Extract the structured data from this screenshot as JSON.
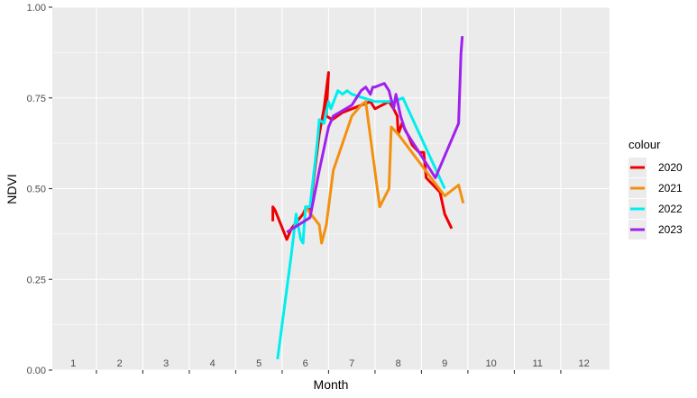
{
  "chart_data": {
    "type": "line",
    "xlabel": "Month",
    "ylabel": "NDVI",
    "xlim": [
      0.55,
      12.55
    ],
    "ylim": [
      0,
      1
    ],
    "x_ticks": [
      1,
      2,
      3,
      4,
      5,
      6,
      7,
      8,
      9,
      10,
      11,
      12
    ],
    "x_tick_labels": [
      "1",
      "2",
      "3",
      "4",
      "5",
      "6",
      "7",
      "8",
      "9",
      "10",
      "11",
      "12"
    ],
    "y_ticks": [
      0,
      0.25,
      0.5,
      0.75,
      1
    ],
    "y_tick_labels": [
      "0.00",
      "0.25",
      "0.50",
      "0.75",
      "1.00"
    ],
    "grid": true,
    "legend": {
      "title": "colour",
      "position": "right"
    },
    "series": [
      {
        "name": "2020",
        "color": "#ee0000",
        "x": [
          5.3,
          5.3,
          5.35,
          5.6,
          5.7,
          5.95,
          6.02,
          6.1,
          6.2,
          6.3,
          6.4,
          6.5,
          6.45,
          6.58,
          6.8,
          7.4,
          7.5,
          7.8,
          7.9,
          7.98,
          8.0,
          8.08,
          8.2,
          8.3,
          8.45,
          8.55,
          8.6,
          8.9,
          9.0,
          9.15
        ],
        "y": [
          0.41,
          0.45,
          0.44,
          0.36,
          0.39,
          0.43,
          0.45,
          0.44,
          0.55,
          0.65,
          0.72,
          0.82,
          0.7,
          0.69,
          0.71,
          0.74,
          0.72,
          0.74,
          0.72,
          0.7,
          0.65,
          0.68,
          0.65,
          0.62,
          0.6,
          0.6,
          0.53,
          0.49,
          0.43,
          0.39
        ]
      },
      {
        "name": "2021",
        "color": "#f39010",
        "x": [
          6.0,
          6.3,
          6.35,
          6.45,
          6.6,
          7.0,
          7.2,
          7.3,
          7.6,
          7.8,
          7.85,
          8.0,
          9.0,
          9.3,
          9.4
        ],
        "y": [
          0.45,
          0.4,
          0.35,
          0.4,
          0.55,
          0.7,
          0.73,
          0.74,
          0.45,
          0.5,
          0.67,
          0.65,
          0.48,
          0.51,
          0.46
        ]
      },
      {
        "name": "2022",
        "color": "#00eeee",
        "x": [
          5.4,
          5.7,
          5.8,
          5.9,
          5.95,
          6.0,
          6.1,
          6.25,
          6.3,
          6.4,
          6.5,
          6.55,
          6.7,
          6.8,
          6.9,
          7.0,
          7.5,
          7.9,
          8.1,
          9.0
        ],
        "y": [
          0.03,
          0.32,
          0.43,
          0.36,
          0.35,
          0.45,
          0.45,
          0.62,
          0.69,
          0.68,
          0.74,
          0.72,
          0.77,
          0.76,
          0.77,
          0.76,
          0.74,
          0.74,
          0.75,
          0.5
        ]
      },
      {
        "name": "2023",
        "color": "#a020f0",
        "x": [
          5.6,
          6.1,
          6.3,
          6.5,
          6.6,
          7.0,
          7.2,
          7.3,
          7.4,
          7.45,
          7.5,
          7.7,
          7.8,
          7.9,
          7.95,
          8.0,
          8.05,
          8.15,
          8.8,
          9.3,
          9.35,
          9.38
        ],
        "y": [
          0.38,
          0.42,
          0.55,
          0.67,
          0.7,
          0.73,
          0.77,
          0.78,
          0.76,
          0.78,
          0.78,
          0.79,
          0.77,
          0.72,
          0.76,
          0.73,
          0.7,
          0.66,
          0.53,
          0.68,
          0.87,
          0.92
        ]
      }
    ]
  }
}
